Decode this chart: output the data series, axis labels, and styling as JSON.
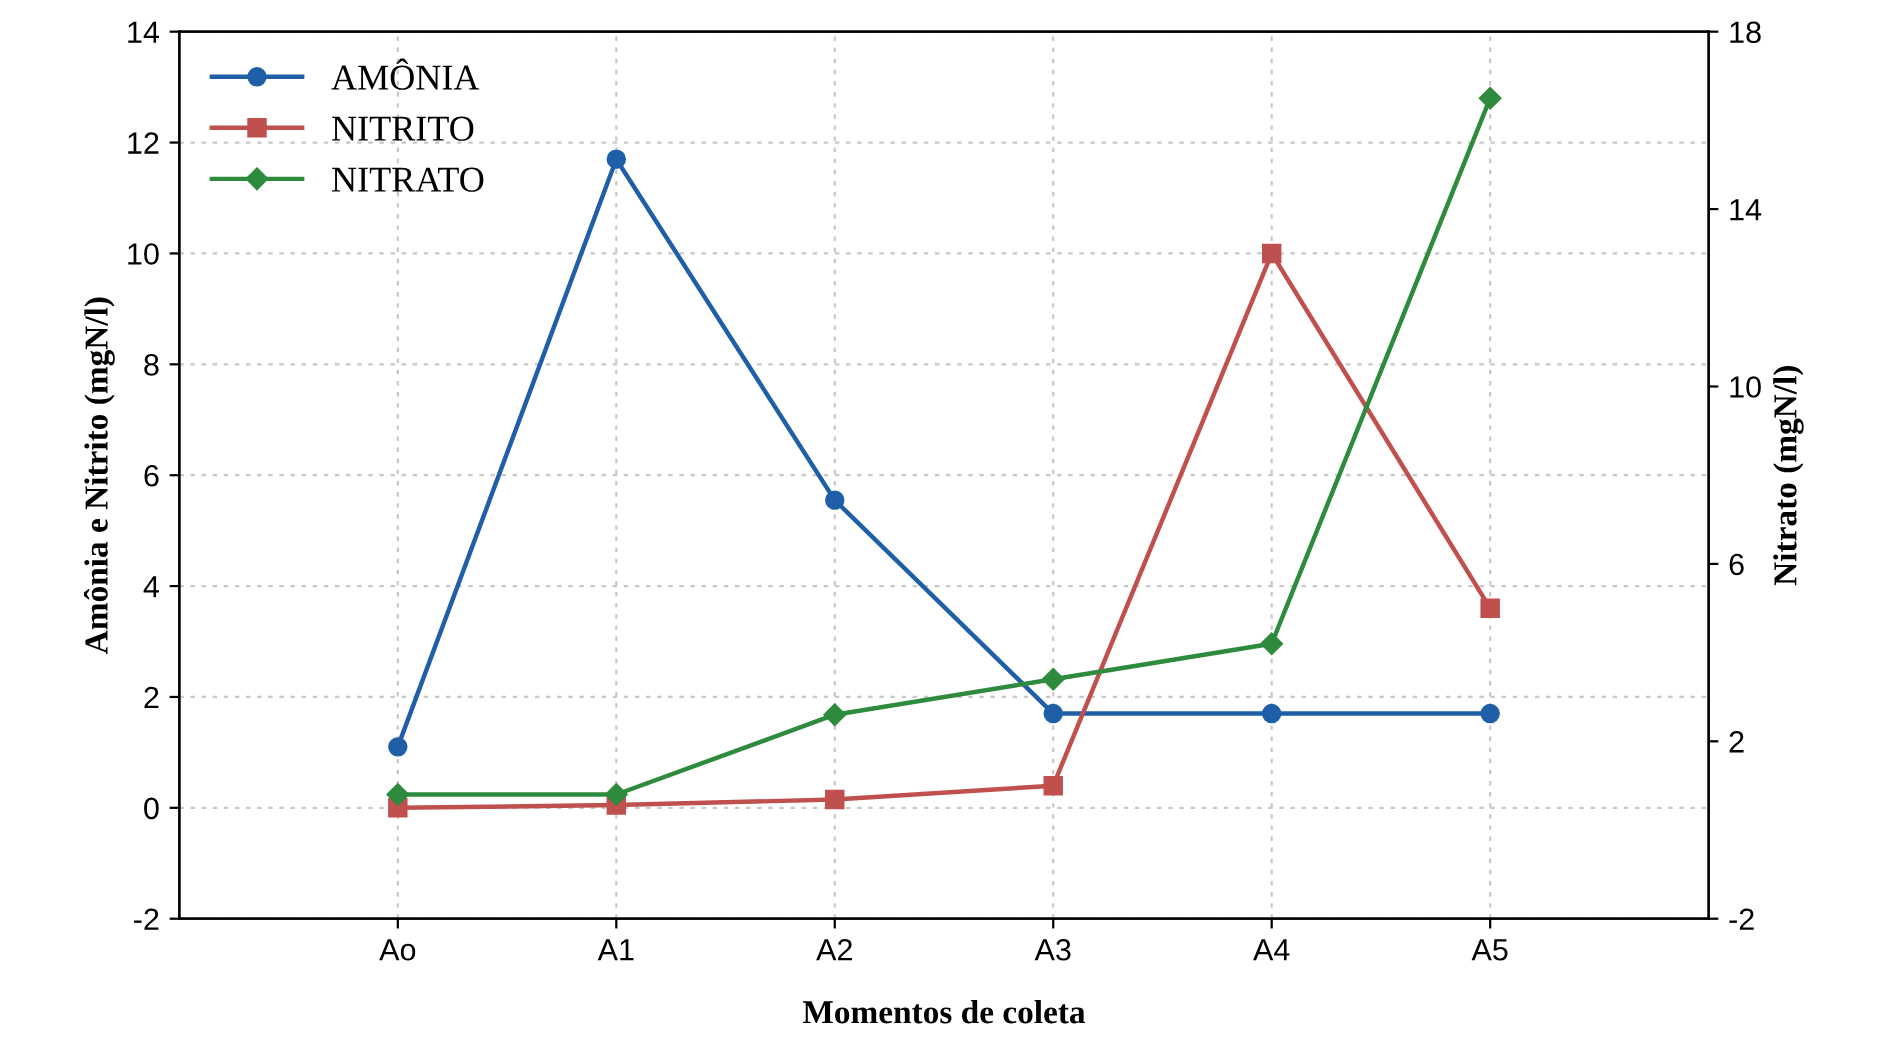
{
  "chart_data": {
    "type": "line",
    "xlabel": "Momentos de coleta",
    "ylabel": "Amônia e Nitrito (mgN/l)",
    "y2label": "Nitrato (mgN/l)",
    "categories": [
      "Ao",
      "A1",
      "A2",
      "A3",
      "A4",
      "A5"
    ],
    "series": [
      {
        "name": "AMÔNIA",
        "color": "#1f5fa8",
        "marker": "circle",
        "values": [
          1.1,
          11.7,
          5.55,
          1.7,
          1.7,
          1.7
        ]
      },
      {
        "name": "NITRITO",
        "color": "#c0504d",
        "marker": "square",
        "values": [
          0.0,
          0.05,
          0.15,
          0.4,
          10.0,
          3.6
        ]
      },
      {
        "name": "NITRATO",
        "color": "#2e8b3e",
        "marker": "diamond",
        "axis": "y2",
        "values": [
          0.8,
          0.8,
          2.6,
          3.4,
          4.2,
          16.5
        ]
      }
    ],
    "ylim": [
      -2,
      14
    ],
    "yticks": [
      -2,
      0,
      2,
      4,
      6,
      8,
      10,
      12,
      14
    ],
    "y2lim": [
      -2,
      18
    ],
    "y2ticks": [
      -2,
      2,
      6,
      10,
      14,
      18
    ],
    "grid": true,
    "legend": "top left",
    "line_style": "solid"
  }
}
